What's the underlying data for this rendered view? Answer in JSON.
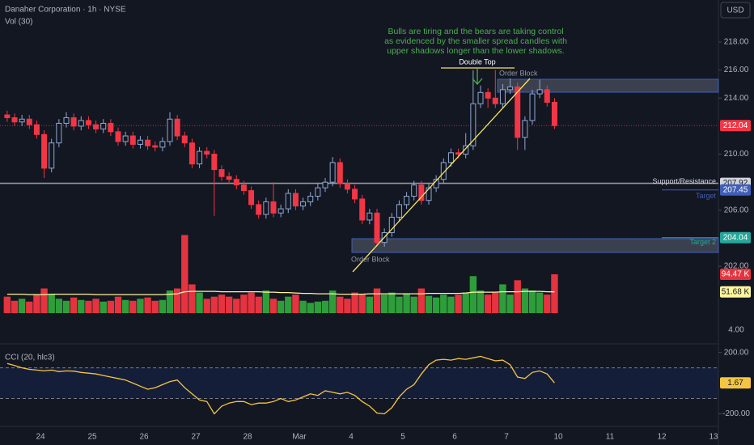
{
  "chart_data": {
    "type": "candlestick",
    "title": "Danaher Corporation · 1h · NYSE",
    "currency": "USD",
    "up_color": "#8fa8d1",
    "down_color": "#f23645",
    "x_labels": [
      "24",
      "25",
      "26",
      "27",
      "28",
      "Mar",
      "4",
      "5",
      "6",
      "7",
      "10",
      "11",
      "12",
      "13"
    ],
    "open": [
      212.8,
      212.6,
      212.3,
      212.5,
      212.1,
      211.4,
      209.0,
      210.8,
      212.2,
      212.6,
      212.0,
      212.4,
      212.1,
      211.8,
      212.2,
      211.6,
      210.9,
      211.3,
      210.7,
      211.0,
      210.6,
      210.5,
      210.9,
      212.5,
      211.3,
      210.8,
      209.3,
      210.2,
      210.0,
      208.9,
      208.4,
      208.2,
      207.8,
      207.4,
      206.4,
      205.7,
      206.6,
      205.8,
      206.1,
      207.2,
      206.3,
      206.6,
      207.0,
      207.6,
      208.0,
      209.4,
      207.9,
      207.5,
      206.8,
      205.3,
      205.8,
      203.7,
      204.4,
      205.5,
      206.4,
      207.0,
      207.8,
      206.7,
      207.6,
      208.2,
      209.4,
      210.1,
      210.0,
      210.6,
      213.6,
      214.4,
      214.0,
      213.6,
      214.6,
      214.8,
      211.2,
      212.4,
      214.3,
      214.6,
      213.7
    ],
    "high": [
      213.1,
      212.9,
      212.8,
      212.8,
      212.4,
      211.7,
      211.1,
      212.5,
      213.0,
      212.9,
      212.7,
      212.7,
      212.4,
      212.5,
      212.5,
      211.9,
      211.6,
      211.6,
      211.3,
      211.3,
      210.9,
      211.2,
      213.0,
      212.8,
      211.6,
      211.1,
      210.5,
      210.5,
      210.3,
      209.2,
      208.7,
      208.5,
      208.1,
      207.7,
      206.7,
      206.9,
      208.0,
      206.4,
      207.5,
      207.5,
      206.9,
      207.3,
      207.9,
      208.3,
      209.8,
      209.7,
      208.2,
      207.8,
      207.1,
      206.1,
      206.1,
      204.7,
      205.8,
      206.7,
      207.3,
      208.1,
      208.1,
      207.9,
      208.5,
      209.7,
      210.4,
      210.4,
      211.5,
      216.0,
      214.9,
      214.7,
      216.0,
      215.0,
      215.4,
      215.1,
      212.7,
      214.6,
      215.3,
      214.9,
      214.0
    ],
    "low": [
      212.3,
      212.0,
      212.0,
      211.8,
      211.1,
      208.3,
      208.7,
      210.5,
      211.9,
      211.7,
      211.7,
      211.8,
      211.5,
      211.5,
      211.3,
      210.6,
      210.6,
      210.4,
      210.4,
      210.3,
      210.2,
      210.2,
      210.6,
      211.0,
      210.5,
      209.0,
      209.0,
      209.7,
      205.6,
      208.1,
      207.9,
      207.5,
      207.1,
      206.1,
      205.4,
      205.4,
      205.5,
      205.5,
      205.8,
      206.0,
      206.0,
      206.3,
      206.7,
      207.3,
      207.7,
      207.6,
      207.2,
      206.5,
      205.0,
      205.0,
      203.4,
      203.4,
      204.1,
      205.2,
      206.1,
      206.7,
      206.4,
      206.4,
      207.3,
      207.9,
      209.1,
      209.7,
      209.7,
      210.3,
      213.3,
      213.3,
      213.3,
      213.3,
      214.3,
      210.3,
      210.3,
      212.1,
      214.0,
      213.4,
      211.8
    ],
    "close": [
      212.6,
      212.3,
      212.5,
      212.1,
      211.4,
      209.0,
      210.8,
      212.2,
      212.6,
      212.0,
      212.4,
      212.1,
      211.8,
      212.2,
      211.6,
      210.9,
      211.3,
      210.7,
      211.0,
      210.6,
      210.5,
      210.9,
      212.5,
      211.3,
      210.8,
      209.3,
      210.2,
      210.0,
      208.9,
      208.4,
      208.2,
      207.8,
      207.4,
      206.4,
      205.7,
      206.6,
      205.8,
      206.1,
      207.2,
      206.3,
      206.6,
      207.0,
      207.6,
      208.0,
      209.4,
      207.9,
      207.5,
      206.8,
      205.3,
      205.8,
      203.7,
      204.4,
      205.5,
      206.4,
      207.0,
      207.8,
      206.7,
      207.6,
      208.2,
      209.4,
      210.1,
      210.0,
      210.6,
      213.6,
      214.4,
      214.0,
      213.6,
      214.6,
      214.8,
      211.2,
      212.4,
      214.3,
      214.6,
      213.7,
      212.04
    ],
    "ylim": [
      198.6,
      221.0
    ],
    "yticks": [
      {
        "value": 218,
        "label": "218.00"
      },
      {
        "value": 216,
        "label": "216.00"
      },
      {
        "value": 214,
        "label": "214.00"
      },
      {
        "value": 210,
        "label": "210.00"
      },
      {
        "value": 206,
        "label": "206.00"
      },
      {
        "value": 202,
        "label": "202.00"
      }
    ],
    "current_price": {
      "value": 212.04,
      "color": "#f23645"
    },
    "levels": [
      {
        "name": "Support/Resistance",
        "value": 207.92,
        "color": "#9598a1"
      },
      {
        "name": "Target",
        "value": 207.45,
        "color": "#3f5fb8"
      },
      {
        "name": "Target 2",
        "value": 204.04,
        "color": "#26a69a"
      }
    ],
    "annotation": [
      "Bulls are tiring and the bears are taking control",
      "as evidenced by the smaller spread candles with",
      "upper shadows longer than the lower shadows."
    ],
    "double_top_label": "Double Top",
    "order_block_labels": [
      "Order Block",
      "Order Block"
    ],
    "axis_extra_label": "4.00",
    "volume": {
      "title": "Vol (30)",
      "up_color": "#2e9e3a",
      "down_color": "#e5343f",
      "ylim": [
        0,
        200
      ],
      "values": [
        40,
        30,
        35,
        28,
        45,
        60,
        45,
        35,
        30,
        38,
        32,
        30,
        35,
        28,
        30,
        40,
        32,
        30,
        35,
        38,
        30,
        32,
        55,
        60,
        190,
        70,
        50,
        35,
        40,
        45,
        40,
        35,
        45,
        50,
        40,
        55,
        35,
        30,
        40,
        45,
        30,
        25,
        28,
        30,
        55,
        40,
        35,
        50,
        45,
        40,
        60,
        45,
        50,
        40,
        48,
        40,
        60,
        42,
        38,
        45,
        40,
        45,
        50,
        90,
        55,
        45,
        50,
        70,
        45,
        80,
        60,
        55,
        50,
        45,
        94.47
      ],
      "last_label": "94.47 K",
      "ma_color": "#fff59d",
      "ma": [
        46,
        46,
        46,
        45,
        45,
        45,
        46,
        46,
        46,
        46,
        46,
        46,
        45,
        45,
        45,
        45,
        45,
        45,
        45,
        45,
        45,
        45,
        46,
        47,
        52,
        53,
        53,
        53,
        53,
        52,
        52,
        52,
        52,
        52,
        52,
        51,
        51,
        50,
        50,
        49,
        48,
        48,
        47,
        47,
        47,
        46,
        46,
        46,
        46,
        47,
        47,
        47,
        47,
        47,
        47,
        47,
        47,
        48,
        48,
        48,
        48,
        48,
        49,
        51,
        51,
        51,
        51,
        52,
        52,
        52,
        53,
        53,
        53,
        52,
        51.68
      ],
      "ma_label": "51.68 K"
    },
    "cci": {
      "title": "CCI (20, hlc3)",
      "color": "#f5c542",
      "ylim": [
        -282,
        256
      ],
      "yticks": [
        {
          "value": 200,
          "label": "200.00"
        },
        {
          "value": -200,
          "label": "-200.00"
        }
      ],
      "band": [
        100,
        -100
      ],
      "values": [
        128,
        115,
        100,
        90,
        85,
        80,
        85,
        75,
        80,
        78,
        70,
        65,
        60,
        50,
        40,
        30,
        20,
        0,
        -20,
        -40,
        -30,
        -10,
        10,
        20,
        -30,
        -70,
        -110,
        -120,
        -200,
        -150,
        -130,
        -120,
        -120,
        -140,
        -130,
        -130,
        -120,
        -100,
        -120,
        -110,
        -90,
        -70,
        -80,
        -50,
        -60,
        -70,
        -60,
        -80,
        -120,
        -150,
        -195,
        -200,
        -160,
        -90,
        -40,
        -10,
        60,
        120,
        150,
        155,
        150,
        160,
        155,
        165,
        175,
        160,
        145,
        150,
        120,
        40,
        30,
        70,
        80,
        60,
        1.67
      ]
    }
  }
}
